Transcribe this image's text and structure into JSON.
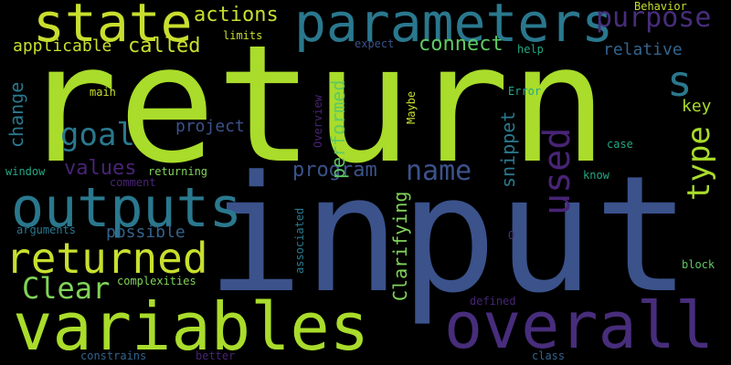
{
  "colors": {
    "background": "#000000",
    "lime": "#a9dc2b",
    "yellow_green": "#c8df2e",
    "green": "#5ec962",
    "light_green": "#80d358",
    "teal": "#2a788e",
    "teal_light": "#23a884",
    "blue": "#3b528b",
    "steel": "#33638d",
    "purple": "#472d7b",
    "deep_purple": "#482475",
    "yellow": "#fde725"
  },
  "words": [
    {
      "text": "return",
      "color": "#a9dc2b"
    },
    {
      "text": "input",
      "color": "#3b528b"
    },
    {
      "text": "parameters",
      "color": "#2a788e"
    },
    {
      "text": "state",
      "color": "#c8df2e"
    },
    {
      "text": "variables",
      "color": "#a9dc2b"
    },
    {
      "text": "overall",
      "color": "#472d7b"
    },
    {
      "text": "outputs",
      "color": "#2a788e"
    },
    {
      "text": "returned",
      "color": "#c8df2e"
    },
    {
      "text": "purpose",
      "color": "#472d7b"
    },
    {
      "text": "used",
      "color": "#482475"
    },
    {
      "text": "goal",
      "color": "#2a788e"
    },
    {
      "text": "name",
      "color": "#3b528b"
    },
    {
      "text": "type",
      "color": "#a9dc2b"
    },
    {
      "text": "Clear",
      "color": "#80d358"
    },
    {
      "text": "s",
      "color": "#2a788e"
    },
    {
      "text": "actions",
      "color": "#c8df2e"
    },
    {
      "text": "called",
      "color": "#c8df2e"
    },
    {
      "text": "applicable",
      "color": "#c8df2e"
    },
    {
      "text": "connect",
      "color": "#5ec962"
    },
    {
      "text": "relative",
      "color": "#33638d"
    },
    {
      "text": "values",
      "color": "#482475"
    },
    {
      "text": "program",
      "color": "#3b528b"
    },
    {
      "text": "project",
      "color": "#3b528b"
    },
    {
      "text": "possible",
      "color": "#33638d"
    },
    {
      "text": "change",
      "color": "#2a788e"
    },
    {
      "text": "performed",
      "color": "#5ec962"
    },
    {
      "text": "snippet",
      "color": "#2a788e"
    },
    {
      "text": "Clarifying",
      "color": "#80d358"
    },
    {
      "text": "key",
      "color": "#a9dc2b"
    },
    {
      "text": "Behavior",
      "color": "#c8df2e"
    },
    {
      "text": "limits",
      "color": "#c8df2e"
    },
    {
      "text": "expect",
      "color": "#3b528b"
    },
    {
      "text": "help",
      "color": "#23a884"
    },
    {
      "text": "main",
      "color": "#c8df2e"
    },
    {
      "text": "Overview",
      "color": "#482475"
    },
    {
      "text": "Maybe",
      "color": "#c8df2e"
    },
    {
      "text": "Error",
      "color": "#23a884"
    },
    {
      "text": "case",
      "color": "#23a884"
    },
    {
      "text": "know",
      "color": "#23a884"
    },
    {
      "text": "window",
      "color": "#23a884"
    },
    {
      "text": "returning",
      "color": "#80d358"
    },
    {
      "text": "comment",
      "color": "#482475"
    },
    {
      "text": "arguments",
      "color": "#2a788e"
    },
    {
      "text": "associated",
      "color": "#2a788e"
    },
    {
      "text": "O",
      "color": "#472d7b"
    },
    {
      "text": "block",
      "color": "#5ec962"
    },
    {
      "text": "complexities",
      "color": "#80d358"
    },
    {
      "text": "defined",
      "color": "#482475"
    },
    {
      "text": "constrains",
      "color": "#33638d"
    },
    {
      "text": "better",
      "color": "#482475"
    },
    {
      "text": "class",
      "color": "#33638d"
    }
  ]
}
